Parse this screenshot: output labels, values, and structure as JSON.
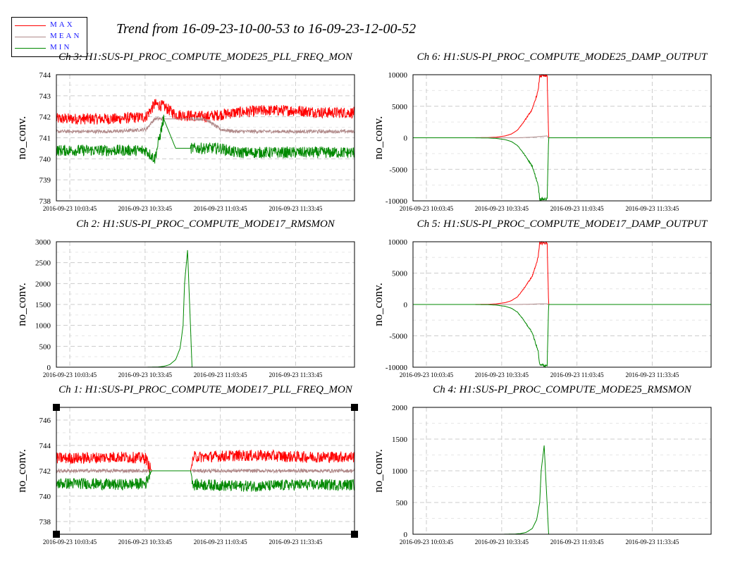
{
  "title": "Trend from 16-09-23-10-00-53 to 16-09-23-12-00-52",
  "legend": {
    "items": [
      {
        "label": "MAX",
        "color": "#ff0000"
      },
      {
        "label": "MEAN",
        "color": "#b08a8a"
      },
      {
        "label": "MIN",
        "color": "#008800"
      }
    ]
  },
  "chart_data": [
    {
      "type": "line",
      "title": "Ch 3: H1:SUS-PI_PROC_COMPUTE_MODE25_PLL_FREQ_MON",
      "ylabel": "no_conv.",
      "ylim": [
        738,
        744
      ],
      "yticks": [
        738,
        739,
        740,
        741,
        742,
        743,
        744
      ],
      "xticks": [
        "2016-09-23 10:03:45",
        "2016-09-23 10:33:45",
        "2016-09-23 11:03:45",
        "2016-09-23 11:33:45"
      ],
      "series": [
        {
          "name": "MAX",
          "x": [
            0,
            10,
            20,
            30,
            33,
            36,
            40,
            50,
            55,
            60,
            70,
            80,
            90,
            100
          ],
          "y": [
            741.9,
            741.9,
            741.9,
            742.0,
            742.6,
            742.5,
            742.1,
            742.0,
            742.1,
            742.2,
            742.3,
            742.3,
            742.2,
            742.2
          ]
        },
        {
          "name": "MEAN",
          "x": [
            0,
            10,
            20,
            30,
            33,
            36,
            40,
            50,
            55,
            60,
            70,
            80,
            90,
            100
          ],
          "y": [
            741.3,
            741.3,
            741.3,
            741.4,
            741.9,
            741.9,
            741.9,
            741.9,
            741.4,
            741.3,
            741.3,
            741.3,
            741.3,
            741.3
          ]
        },
        {
          "name": "MIN",
          "x": [
            0,
            10,
            20,
            30,
            33,
            36,
            40,
            50,
            55,
            60,
            70,
            80,
            90,
            100
          ],
          "y": [
            740.4,
            740.4,
            740.4,
            740.4,
            740.0,
            741.9,
            740.5,
            740.5,
            740.5,
            740.3,
            740.3,
            740.3,
            740.3,
            740.3
          ]
        }
      ]
    },
    {
      "type": "line",
      "title": "Ch 6: H1:SUS-PI_PROC_COMPUTE_MODE25_DAMP_OUTPUT",
      "ylabel": "no_conv.",
      "ylim": [
        -10000,
        10000
      ],
      "yticks": [
        -10000,
        -5000,
        0,
        5000,
        10000
      ],
      "xticks": [
        "2016-09-23 10:03:45",
        "2016-09-23 10:33:45",
        "2016-09-23 11:03:45",
        "2016-09-23 11:33:45"
      ],
      "series": [
        {
          "name": "MAX",
          "x": [
            0,
            10,
            20,
            25,
            28,
            31,
            33,
            35,
            37,
            40,
            42,
            42.5,
            45,
            45.5,
            50,
            60,
            70,
            80,
            90,
            100
          ],
          "y": [
            0,
            0,
            0,
            30,
            100,
            300,
            600,
            1200,
            2400,
            4500,
            7500,
            9800,
            9800,
            0,
            0,
            0,
            0,
            0,
            0,
            0
          ]
        },
        {
          "name": "MEAN",
          "x": [
            0,
            10,
            20,
            30,
            35,
            40,
            42.5,
            45,
            45.5,
            50,
            60,
            70,
            80,
            90,
            100
          ],
          "y": [
            0,
            0,
            0,
            0,
            0,
            100,
            200,
            300,
            0,
            0,
            0,
            0,
            0,
            0,
            0
          ]
        },
        {
          "name": "MIN",
          "x": [
            0,
            10,
            20,
            25,
            28,
            31,
            33,
            35,
            37,
            40,
            42,
            42.5,
            45,
            45.5,
            50,
            60,
            70,
            80,
            90,
            100
          ],
          "y": [
            0,
            0,
            0,
            -30,
            -100,
            -300,
            -600,
            -1200,
            -2400,
            -4500,
            -7500,
            -9700,
            -9700,
            0,
            0,
            0,
            0,
            0,
            0,
            0
          ]
        }
      ]
    },
    {
      "type": "line",
      "title": "Ch 2: H1:SUS-PI_PROC_COMPUTE_MODE17_RMSMON",
      "ylabel": "no_conv.",
      "ylim": [
        0,
        3000
      ],
      "yticks": [
        0,
        500,
        1000,
        1500,
        2000,
        2500,
        3000
      ],
      "xticks": [
        "2016-09-23 10:03:45",
        "2016-09-23 10:33:45",
        "2016-09-23 11:03:45",
        "2016-09-23 11:33:45"
      ],
      "series": [
        {
          "name": "MIN",
          "x": [
            0,
            10,
            20,
            30,
            34,
            36,
            38,
            40,
            41.5,
            42.5,
            43,
            44,
            45.5,
            50,
            60,
            70,
            80,
            90,
            100
          ],
          "y": [
            0,
            0,
            0,
            0,
            5,
            20,
            60,
            180,
            450,
            1000,
            2000,
            2800,
            0,
            0,
            0,
            0,
            0,
            0,
            0
          ]
        }
      ]
    },
    {
      "type": "line",
      "title": "Ch 5: H1:SUS-PI_PROC_COMPUTE_MODE17_DAMP_OUTPUT",
      "ylabel": "no_conv.",
      "ylim": [
        -10000,
        10000
      ],
      "yticks": [
        -10000,
        -5000,
        0,
        5000,
        10000
      ],
      "xticks": [
        "2016-09-23 10:03:45",
        "2016-09-23 10:33:45",
        "2016-09-23 11:03:45",
        "2016-09-23 11:33:45"
      ],
      "series": [
        {
          "name": "MAX",
          "x": [
            0,
            10,
            20,
            25,
            28,
            31,
            33,
            35,
            37,
            40,
            42,
            42.5,
            45,
            45.5,
            50,
            60,
            70,
            80,
            90,
            100
          ],
          "y": [
            0,
            0,
            0,
            30,
            100,
            300,
            600,
            1200,
            2400,
            4500,
            7500,
            9800,
            9800,
            0,
            0,
            0,
            0,
            0,
            0,
            0
          ]
        },
        {
          "name": "MEAN",
          "x": [
            0,
            10,
            20,
            30,
            35,
            40,
            42.5,
            45,
            45.5,
            50,
            60,
            70,
            80,
            90,
            100
          ],
          "y": [
            0,
            0,
            0,
            0,
            0,
            50,
            100,
            100,
            0,
            0,
            0,
            0,
            0,
            0,
            0
          ]
        },
        {
          "name": "MIN",
          "x": [
            0,
            10,
            20,
            25,
            28,
            31,
            33,
            35,
            37,
            40,
            42,
            42.5,
            45,
            45.5,
            50,
            60,
            70,
            80,
            90,
            100
          ],
          "y": [
            0,
            0,
            0,
            -30,
            -100,
            -300,
            -600,
            -1200,
            -2400,
            -4500,
            -7500,
            -9700,
            -9700,
            0,
            0,
            0,
            0,
            0,
            0,
            0
          ]
        }
      ]
    },
    {
      "type": "line",
      "title": "Ch 1: H1:SUS-PI_PROC_COMPUTE_MODE17_PLL_FREQ_MON",
      "ylabel": "no_conv.",
      "ylim": [
        737,
        747
      ],
      "yticks": [
        738,
        740,
        742,
        744,
        746
      ],
      "xticks": [
        "2016-09-23 10:03:45",
        "2016-09-23 10:33:45",
        "2016-09-23 11:03:45",
        "2016-09-23 11:33:45"
      ],
      "series": [
        {
          "name": "MAX",
          "x": [
            0,
            10,
            20,
            30,
            31,
            32,
            45,
            46,
            50,
            60,
            70,
            80,
            90,
            100
          ],
          "y": [
            743.0,
            743.0,
            743.1,
            743.0,
            742.4,
            742.0,
            742.0,
            743.1,
            743.1,
            743.2,
            743.2,
            743.1,
            743.1,
            743.1
          ]
        },
        {
          "name": "MEAN",
          "x": [
            0,
            10,
            20,
            30,
            31,
            32,
            45,
            46,
            50,
            60,
            70,
            80,
            90,
            100
          ],
          "y": [
            742.0,
            742.0,
            742.0,
            742.0,
            742.0,
            742.0,
            742.0,
            742.0,
            742.0,
            742.0,
            742.0,
            742.0,
            742.0,
            742.0
          ]
        },
        {
          "name": "MIN",
          "x": [
            0,
            10,
            20,
            30,
            31,
            32,
            45,
            46,
            50,
            60,
            70,
            80,
            90,
            100
          ],
          "y": [
            741.0,
            741.0,
            740.9,
            741.0,
            741.6,
            742.0,
            742.0,
            740.9,
            740.9,
            740.8,
            740.8,
            740.9,
            740.9,
            740.9
          ]
        }
      ]
    },
    {
      "type": "line",
      "title": "Ch 4: H1:SUS-PI_PROC_COMPUTE_MODE25_RMSMON",
      "ylabel": "no_conv.",
      "ylim": [
        0,
        2000
      ],
      "yticks": [
        0,
        500,
        1000,
        1500,
        2000
      ],
      "xticks": [
        "2016-09-23 10:03:45",
        "2016-09-23 10:33:45",
        "2016-09-23 11:03:45",
        "2016-09-23 11:33:45"
      ],
      "series": [
        {
          "name": "MIN",
          "x": [
            0,
            10,
            20,
            30,
            34,
            36,
            38,
            40,
            41.5,
            42.5,
            43,
            44,
            45.5,
            50,
            60,
            70,
            80,
            90,
            100
          ],
          "y": [
            0,
            0,
            0,
            0,
            3,
            10,
            30,
            90,
            230,
            500,
            1000,
            1400,
            0,
            0,
            0,
            0,
            0,
            0,
            0
          ]
        }
      ]
    }
  ]
}
